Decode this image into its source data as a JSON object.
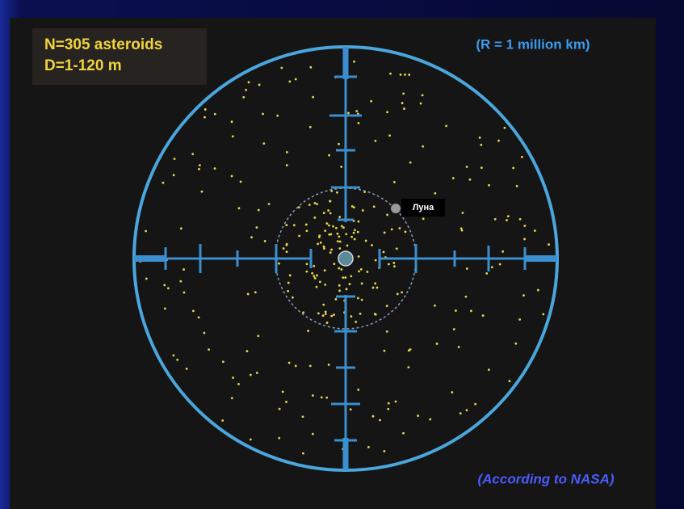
{
  "header": {
    "count": "N=305 asteroids",
    "diameter": "D=1-120 m"
  },
  "scale_note": "(R = 1 million km)",
  "moon_label": "Луна",
  "source": "(According to NASA)"
}
